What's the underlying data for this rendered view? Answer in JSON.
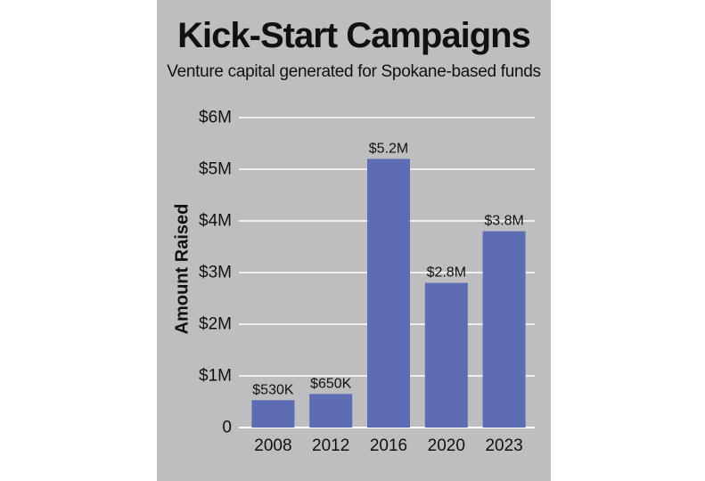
{
  "chart_data": {
    "type": "bar",
    "title": "Kick-Start Campaigns",
    "subtitle": "Venture capital generated for Spokane-based funds",
    "ylabel": "Amount Raised",
    "xlabel": "",
    "categories": [
      "2008",
      "2012",
      "2016",
      "2020",
      "2023"
    ],
    "values": [
      0.53,
      0.65,
      5.2,
      2.8,
      3.8
    ],
    "value_labels": [
      "$530K",
      "$650K",
      "$5.2M",
      "$2.8M",
      "$3.8M"
    ],
    "ylim": [
      0,
      6
    ],
    "yticks": [
      0,
      1,
      2,
      3,
      4,
      5,
      6
    ],
    "ytick_labels": [
      "0",
      "$1M",
      "$2M",
      "$3M",
      "$4M",
      "$5M",
      "$6M"
    ],
    "grid": true,
    "bar_color": "#5d6db4",
    "background_color": "#bebec0",
    "gridline_color": "#ffffff"
  }
}
